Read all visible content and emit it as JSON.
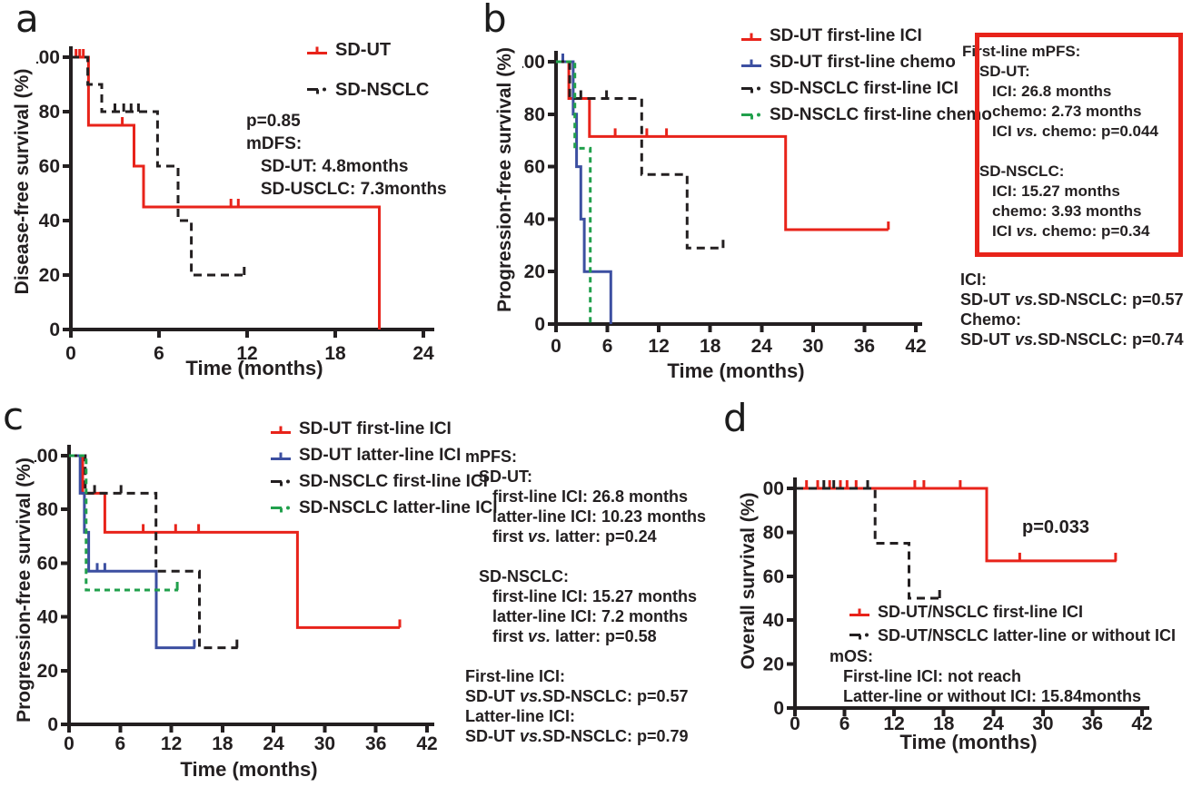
{
  "figure": {
    "panel_letters": [
      "a",
      "b",
      "c",
      "d"
    ]
  },
  "colors": {
    "red": "#e8231a",
    "blue": "#3c4fa1",
    "green": "#21a04c",
    "black": "#231f20",
    "text": "#231f20",
    "box_border": "#e8231a",
    "background": "#ffffff"
  },
  "chart_data": [
    {
      "id": "a",
      "type": "line",
      "step": true,
      "grid": false,
      "ylabel": "Disease-free survival (%)",
      "xlabel": "Time (months)",
      "xlim": [
        0,
        24
      ],
      "ylim": [
        0,
        100
      ],
      "xticks": [
        0,
        6,
        12,
        18,
        24
      ],
      "yticks": [
        0,
        20,
        40,
        60,
        80,
        100
      ],
      "legend_position": "top-right",
      "series": [
        {
          "name": "SD-UT",
          "color_key": "red",
          "line": "solid",
          "points": [
            [
              0,
              100
            ],
            [
              1.2,
              100
            ],
            [
              1.2,
              75
            ],
            [
              4.3,
              75
            ],
            [
              4.3,
              60
            ],
            [
              4.95,
              60
            ],
            [
              4.95,
              45
            ],
            [
              21,
              45
            ],
            [
              21,
              0
            ]
          ],
          "censors": [
            [
              0.35,
              100
            ],
            [
              0.6,
              100
            ],
            [
              0.85,
              100
            ],
            [
              3.5,
              75
            ],
            [
              10.9,
              45
            ],
            [
              11.4,
              45
            ]
          ]
        },
        {
          "name": "SD-NSCLC",
          "color_key": "black",
          "line": "dashed",
          "points": [
            [
              0,
              100
            ],
            [
              1.15,
              100
            ],
            [
              1.15,
              90
            ],
            [
              2.1,
              90
            ],
            [
              2.1,
              80
            ],
            [
              5.9,
              80
            ],
            [
              5.9,
              60
            ],
            [
              7.3,
              60
            ],
            [
              7.3,
              40
            ],
            [
              8.2,
              40
            ],
            [
              8.2,
              20
            ],
            [
              11.9,
              20
            ]
          ],
          "censors": [
            [
              3.0,
              80
            ],
            [
              3.6,
              80
            ],
            [
              4.1,
              80
            ],
            [
              4.6,
              80
            ],
            [
              11.8,
              20
            ]
          ]
        }
      ],
      "annotations": [
        {
          "id": "stats",
          "lines": [
            "p=0.85",
            "mDFS:",
            "   SD-UT: 4.8months",
            "   SD-USCLC: 7.3months"
          ]
        }
      ]
    },
    {
      "id": "b",
      "type": "line",
      "step": true,
      "grid": false,
      "ylabel": "Progression-free survival (%)",
      "xlabel": "Time (months)",
      "xlim": [
        0,
        42
      ],
      "ylim": [
        0,
        100
      ],
      "xticks": [
        0,
        6,
        12,
        18,
        24,
        30,
        36,
        42
      ],
      "yticks": [
        0,
        20,
        40,
        60,
        80,
        100
      ],
      "legend_position": "top-right",
      "series": [
        {
          "name": "SD-UT first-line ICI",
          "color_key": "red",
          "line": "solid",
          "points": [
            [
              0,
              100
            ],
            [
              1.5,
              100
            ],
            [
              1.5,
              86
            ],
            [
              3.9,
              86
            ],
            [
              3.9,
              71.5
            ],
            [
              26.8,
              71.5
            ],
            [
              26.8,
              36
            ],
            [
              38.8,
              36
            ]
          ],
          "censors": [
            [
              6.9,
              71.5
            ],
            [
              10.6,
              71.5
            ],
            [
              12.9,
              71.5
            ],
            [
              38.8,
              36
            ]
          ]
        },
        {
          "name": "SD-UT  first-line chemo",
          "color_key": "blue",
          "line": "solid",
          "points": [
            [
              0,
              100
            ],
            [
              2.0,
              100
            ],
            [
              2.0,
              80
            ],
            [
              2.4,
              80
            ],
            [
              2.4,
              60
            ],
            [
              2.9,
              60
            ],
            [
              2.9,
              40
            ],
            [
              3.3,
              40
            ],
            [
              3.3,
              20
            ],
            [
              6.4,
              20
            ],
            [
              6.4,
              0
            ]
          ],
          "censors": [
            [
              0.8,
              100
            ]
          ]
        },
        {
          "name": "SD-NSCLC  first-line ICI",
          "color_key": "black",
          "line": "dashed",
          "points": [
            [
              0,
              100
            ],
            [
              1.6,
              100
            ],
            [
              1.6,
              86
            ],
            [
              10,
              86
            ],
            [
              10,
              57
            ],
            [
              15.3,
              57
            ],
            [
              15.3,
              29
            ],
            [
              19.6,
              29
            ]
          ],
          "censors": [
            [
              2.9,
              86
            ],
            [
              5.9,
              86
            ],
            [
              19.5,
              29
            ]
          ]
        },
        {
          "name": "SD-NSCLC  first-line chemo",
          "color_key": "green",
          "line": "dashed",
          "points": [
            [
              0,
              100
            ],
            [
              2.2,
              100
            ],
            [
              2.2,
              67
            ],
            [
              4.0,
              67
            ],
            [
              4.0,
              0
            ]
          ],
          "censors": []
        }
      ],
      "annotations": [
        {
          "id": "first_line_mpfs_box",
          "lines": [
            "First-line mPFS:",
            "    SD-UT:",
            "       ICI: 26.8 months",
            "       chemo: 2.73 months",
            "       ICI vs. chemo: p=0.044",
            "",
            "    SD-NSCLC:",
            "       ICI: 15.27 months",
            "       chemo: 3.93 months",
            "       ICI vs. chemo: p=0.34"
          ]
        },
        {
          "id": "between_groups",
          "lines": [
            "ICI:",
            "SD-UT vs.SD-NSCLC: p=0.57",
            "Chemo:",
            "SD-UT vs.SD-NSCLC: p=0.74"
          ]
        }
      ]
    },
    {
      "id": "c",
      "type": "line",
      "step": true,
      "grid": false,
      "ylabel": "Progression-free survival (%)",
      "xlabel": "Time (months)",
      "xlim": [
        0,
        42
      ],
      "ylim": [
        0,
        100
      ],
      "xticks": [
        0,
        6,
        12,
        18,
        24,
        30,
        36,
        42
      ],
      "yticks": [
        0,
        20,
        40,
        60,
        80,
        100
      ],
      "legend_position": "top-right",
      "series": [
        {
          "name": "SD-UT first-line ICI",
          "color_key": "red",
          "line": "solid",
          "points": [
            [
              0,
              100
            ],
            [
              1.6,
              100
            ],
            [
              1.6,
              86
            ],
            [
              4.2,
              86
            ],
            [
              4.2,
              71.5
            ],
            [
              26.8,
              71.5
            ],
            [
              26.8,
              36
            ],
            [
              38.8,
              36
            ]
          ],
          "censors": [
            [
              8.7,
              71.5
            ],
            [
              12.5,
              71.5
            ],
            [
              15.2,
              71.5
            ],
            [
              38.8,
              36
            ]
          ]
        },
        {
          "name": "SD-UT latter-line ICI",
          "color_key": "blue",
          "line": "solid",
          "points": [
            [
              0,
              100
            ],
            [
              1.3,
              100
            ],
            [
              1.3,
              86
            ],
            [
              1.8,
              86
            ],
            [
              1.8,
              71.5
            ],
            [
              2.3,
              71.5
            ],
            [
              2.3,
              57
            ],
            [
              10.23,
              57
            ],
            [
              10.23,
              28.5
            ],
            [
              14.8,
              28.5
            ]
          ],
          "censors": [
            [
              3.3,
              57
            ],
            [
              4.2,
              57
            ],
            [
              14.7,
              28.5
            ]
          ]
        },
        {
          "name": "SD-NSCLC first-line ICI",
          "color_key": "black",
          "line": "dashed",
          "points": [
            [
              0,
              100
            ],
            [
              1.9,
              100
            ],
            [
              1.9,
              86
            ],
            [
              10.2,
              86
            ],
            [
              10.2,
              57
            ],
            [
              15.3,
              57
            ],
            [
              15.3,
              28.5
            ],
            [
              19.8,
              28.5
            ]
          ],
          "censors": [
            [
              3.0,
              86
            ],
            [
              6.1,
              86
            ],
            [
              19.7,
              28.5
            ]
          ]
        },
        {
          "name": "SD-NSCLC latter-line ICI",
          "color_key": "green",
          "line": "dashed",
          "points": [
            [
              0,
              100
            ],
            [
              2.0,
              100
            ],
            [
              2.0,
              50
            ],
            [
              12.8,
              50
            ]
          ],
          "censors": [
            [
              12.7,
              50
            ]
          ]
        }
      ],
      "annotations": [
        {
          "id": "mpfs",
          "lines": [
            "mPFS:",
            "   SD-UT:",
            "      first-line ICI: 26.8 months",
            "      latter-line ICI: 10.23 months",
            "      first vs. latter: p=0.24",
            "",
            "   SD-NSCLC:",
            "      first-line ICI: 15.27 months",
            "      latter-line ICI: 7.2 months",
            "      first vs. latter: p=0.58"
          ]
        },
        {
          "id": "between_groups",
          "lines": [
            "First-line ICI:",
            "SD-UT vs.SD-NSCLC: p=0.57",
            "Latter-line ICI:",
            "SD-UT vs.SD-NSCLC: p=0.79"
          ]
        }
      ]
    },
    {
      "id": "d",
      "type": "line",
      "step": true,
      "grid": false,
      "ylabel": "Overall survival (%)",
      "xlabel": "Time (months)",
      "xlim": [
        0,
        42
      ],
      "ylim": [
        0,
        100
      ],
      "xticks": [
        0,
        6,
        12,
        18,
        24,
        30,
        36,
        42
      ],
      "yticks": [
        0,
        20,
        40,
        60,
        80,
        100
      ],
      "legend_position": "inside",
      "series": [
        {
          "name": "SD-UT/NSCLC first-line ICI",
          "color_key": "red",
          "line": "solid",
          "points": [
            [
              0,
              100
            ],
            [
              23.2,
              100
            ],
            [
              23.2,
              67
            ],
            [
              38.9,
              67
            ]
          ],
          "censors": [
            [
              1.4,
              100
            ],
            [
              2.75,
              100
            ],
            [
              4.2,
              100
            ],
            [
              5.5,
              100
            ],
            [
              6.3,
              100
            ],
            [
              7.4,
              100
            ],
            [
              14.5,
              100
            ],
            [
              15.6,
              100
            ],
            [
              20,
              100
            ],
            [
              27.2,
              67
            ],
            [
              38.8,
              67
            ]
          ]
        },
        {
          "name": "SD-UT/NSCLC latter-line or without ICI",
          "color_key": "black",
          "line": "dashed",
          "points": [
            [
              0,
              100
            ],
            [
              9.7,
              100
            ],
            [
              9.7,
              75
            ],
            [
              13.8,
              75
            ],
            [
              13.8,
              50
            ],
            [
              17.7,
              50
            ]
          ],
          "censors": [
            [
              3.5,
              100
            ],
            [
              4.7,
              100
            ],
            [
              8.8,
              100
            ],
            [
              17.5,
              50
            ]
          ]
        }
      ],
      "annotations": [
        {
          "id": "p_value",
          "lines": [
            "p=0.033"
          ]
        },
        {
          "id": "mos",
          "lines": [
            "mOS:",
            "   First-line ICI: not reach",
            "   Latter-line or without ICI: 15.84months"
          ]
        }
      ]
    }
  ]
}
